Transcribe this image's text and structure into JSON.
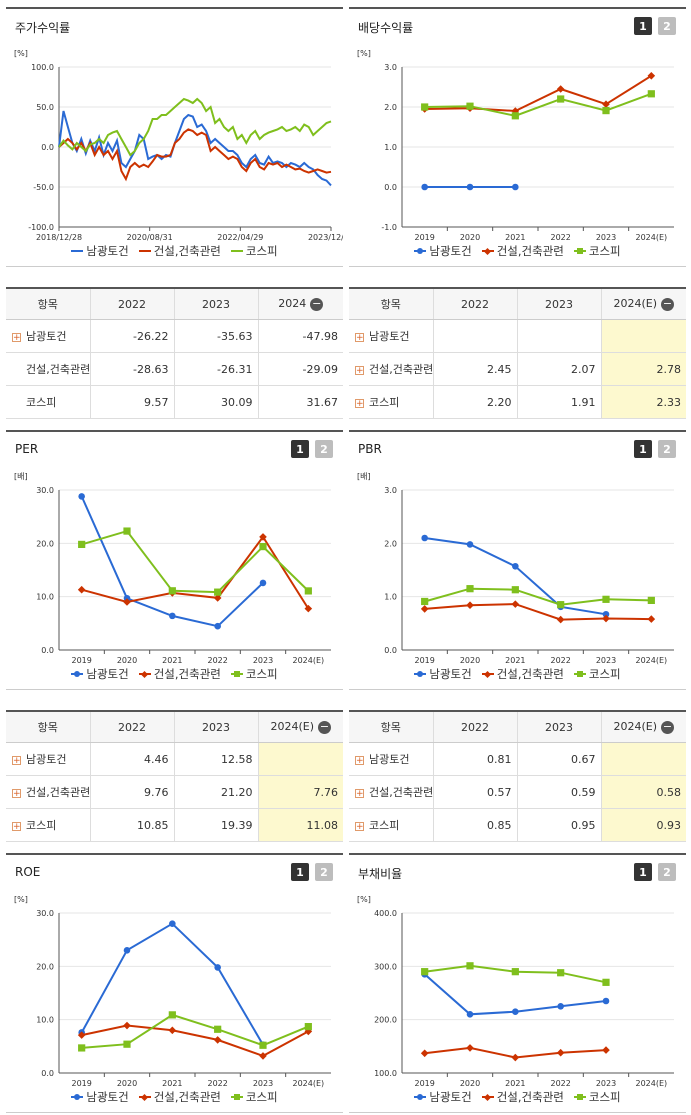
{
  "colors": {
    "s1": "#2a6ad4",
    "s2": "#cc3300",
    "s3": "#7fbf1d",
    "highlight": "#fdf9cf"
  },
  "tab_labels": [
    "1",
    "2"
  ],
  "chart_data": [
    {
      "id": "stock_return",
      "type": "line",
      "title": "주가수익률",
      "unit": "[%]",
      "x_ticks": [
        "2018/12/28",
        "2020/08/31",
        "2022/04/29",
        "2023/12/28"
      ],
      "y_ticks": [
        "100.0",
        "50.0",
        "0.0",
        "-50.0",
        "-100.0"
      ],
      "ylim": [
        -100,
        100
      ],
      "series": [
        {
          "name": "남광토건",
          "values": [
            0,
            45,
            25,
            5,
            -5,
            10,
            -8,
            8,
            -5,
            12,
            -10,
            5,
            -5,
            8,
            -20,
            -25,
            -15,
            -5,
            15,
            10,
            -15,
            -12,
            -10,
            -15,
            -10,
            -12,
            5,
            20,
            35,
            40,
            38,
            25,
            28,
            20,
            5,
            10,
            5,
            0,
            -5,
            -5,
            -10,
            -20,
            -25,
            -15,
            -10,
            -20,
            -22,
            -12,
            -20,
            -18,
            -20,
            -25,
            -20,
            -22,
            -25,
            -20,
            -25,
            -28,
            -35,
            -40,
            -42,
            -48
          ]
        },
        {
          "name": "건설,건축관련",
          "values": [
            0,
            5,
            10,
            5,
            -3,
            5,
            -5,
            5,
            -10,
            0,
            -10,
            -5,
            -15,
            -5,
            -30,
            -40,
            -25,
            -20,
            -25,
            -22,
            -25,
            -18,
            -10,
            -12,
            -12,
            -10,
            5,
            10,
            18,
            22,
            20,
            15,
            18,
            15,
            -5,
            0,
            -5,
            -10,
            -15,
            -12,
            -15,
            -25,
            -30,
            -20,
            -15,
            -25,
            -28,
            -20,
            -22,
            -20,
            -25,
            -22,
            -25,
            -28,
            -27,
            -30,
            -32,
            -30,
            -28,
            -30,
            -32,
            -31
          ]
        },
        {
          "name": "코스피",
          "values": [
            0,
            8,
            2,
            -3,
            5,
            0,
            -5,
            3,
            5,
            10,
            5,
            15,
            18,
            20,
            10,
            0,
            -10,
            -5,
            5,
            10,
            20,
            35,
            35,
            40,
            40,
            45,
            50,
            55,
            60,
            58,
            55,
            60,
            55,
            45,
            50,
            30,
            35,
            25,
            20,
            25,
            10,
            15,
            5,
            15,
            20,
            10,
            15,
            18,
            20,
            22,
            25,
            20,
            22,
            25,
            20,
            28,
            25,
            15,
            20,
            25,
            30,
            32
          ]
        }
      ]
    },
    {
      "id": "dividend",
      "type": "line",
      "title": "배당수익률",
      "unit": "[%]",
      "categories": [
        "2019",
        "2020",
        "2021",
        "2022",
        "2023",
        "2024(E)"
      ],
      "y_ticks": [
        "3.0",
        "2.0",
        "1.0",
        "0.0",
        "-1.0"
      ],
      "ylim": [
        -1,
        3
      ],
      "series": [
        {
          "name": "남광토건",
          "values": [
            0.0,
            0.0,
            0.0,
            null,
            null,
            null
          ]
        },
        {
          "name": "건설,건축관련",
          "values": [
            1.95,
            1.97,
            1.9,
            2.45,
            2.07,
            2.78
          ]
        },
        {
          "name": "코스피",
          "values": [
            2.0,
            2.02,
            1.78,
            2.2,
            1.91,
            2.33
          ]
        }
      ]
    },
    {
      "id": "per",
      "type": "line",
      "title": "PER",
      "unit": "[배]",
      "categories": [
        "2019",
        "2020",
        "2021",
        "2022",
        "2023",
        "2024(E)"
      ],
      "y_ticks": [
        "30.0",
        "20.0",
        "10.0",
        "0.0"
      ],
      "ylim": [
        0,
        30
      ],
      "series": [
        {
          "name": "남광토건",
          "values": [
            28.8,
            9.7,
            6.4,
            4.46,
            12.58,
            null
          ]
        },
        {
          "name": "건설,건축관련",
          "values": [
            11.3,
            9.0,
            10.7,
            9.76,
            21.2,
            7.76
          ]
        },
        {
          "name": "코스피",
          "values": [
            19.8,
            22.3,
            11.1,
            10.85,
            19.39,
            11.08
          ]
        }
      ]
    },
    {
      "id": "pbr",
      "type": "line",
      "title": "PBR",
      "unit": "[배]",
      "categories": [
        "2019",
        "2020",
        "2021",
        "2022",
        "2023",
        "2024(E)"
      ],
      "y_ticks": [
        "3.0",
        "2.0",
        "1.0",
        "0.0"
      ],
      "ylim": [
        0,
        3
      ],
      "series": [
        {
          "name": "남광토건",
          "values": [
            2.1,
            1.98,
            1.57,
            0.81,
            0.67,
            null
          ]
        },
        {
          "name": "건설,건축관련",
          "values": [
            0.77,
            0.84,
            0.86,
            0.57,
            0.59,
            0.58
          ]
        },
        {
          "name": "코스피",
          "values": [
            0.91,
            1.15,
            1.13,
            0.85,
            0.95,
            0.93
          ]
        }
      ]
    },
    {
      "id": "roe",
      "type": "line",
      "title": "ROE",
      "unit": "[%]",
      "categories": [
        "2019",
        "2020",
        "2021",
        "2022",
        "2023",
        "2024(E)"
      ],
      "y_ticks": [
        "30.0",
        "20.0",
        "10.0",
        "0.0"
      ],
      "ylim": [
        0,
        30
      ],
      "series": [
        {
          "name": "남광토건",
          "values": [
            7.6,
            23.0,
            28.0,
            19.8,
            5.3,
            null
          ]
        },
        {
          "name": "건설,건축관련",
          "values": [
            7.1,
            8.9,
            8.0,
            6.2,
            3.2,
            7.8
          ]
        },
        {
          "name": "코스피",
          "values": [
            4.7,
            5.4,
            10.9,
            8.2,
            5.2,
            8.7
          ]
        }
      ]
    },
    {
      "id": "debt_ratio",
      "type": "line",
      "title": "부채비율",
      "unit": "[%]",
      "categories": [
        "2019",
        "2020",
        "2021",
        "2022",
        "2023",
        "2024(E)"
      ],
      "y_ticks": [
        "400.0",
        "300.0",
        "200.0",
        "100.0"
      ],
      "ylim": [
        100,
        400
      ],
      "series": [
        {
          "name": "남광토건",
          "values": [
            285,
            210,
            215,
            225,
            235,
            null
          ]
        },
        {
          "name": "건설,건축관련",
          "values": [
            137,
            147,
            129,
            138,
            143,
            null
          ]
        },
        {
          "name": "코스피",
          "values": [
            290,
            301,
            290,
            288,
            270,
            null
          ]
        }
      ]
    }
  ],
  "tables": {
    "header_label": "항목",
    "stock_return": {
      "columns": [
        "2022",
        "2023",
        "2024"
      ],
      "rows": [
        {
          "label": "남광토건",
          "plus": true,
          "values": [
            "-26.22",
            "-35.63",
            "-47.98"
          ]
        },
        {
          "label": "건설,건축관련",
          "plus": false,
          "values": [
            "-28.63",
            "-26.31",
            "-29.09"
          ]
        },
        {
          "label": "코스피",
          "plus": false,
          "values": [
            "9.57",
            "30.09",
            "31.67"
          ]
        }
      ]
    },
    "dividend": {
      "columns": [
        "2022",
        "2023",
        "2024(E)"
      ],
      "rows": [
        {
          "label": "남광토건",
          "plus": true,
          "values": [
            "",
            "",
            ""
          ]
        },
        {
          "label": "건설,건축관련",
          "plus": true,
          "values": [
            "2.45",
            "2.07",
            "2.78"
          ]
        },
        {
          "label": "코스피",
          "plus": true,
          "values": [
            "2.20",
            "1.91",
            "2.33"
          ]
        }
      ]
    },
    "per": {
      "columns": [
        "2022",
        "2023",
        "2024(E)"
      ],
      "rows": [
        {
          "label": "남광토건",
          "plus": true,
          "values": [
            "4.46",
            "12.58",
            ""
          ]
        },
        {
          "label": "건설,건축관련",
          "plus": true,
          "values": [
            "9.76",
            "21.20",
            "7.76"
          ]
        },
        {
          "label": "코스피",
          "plus": true,
          "values": [
            "10.85",
            "19.39",
            "11.08"
          ]
        }
      ]
    },
    "pbr": {
      "columns": [
        "2022",
        "2023",
        "2024(E)"
      ],
      "rows": [
        {
          "label": "남광토건",
          "plus": true,
          "values": [
            "0.81",
            "0.67",
            ""
          ]
        },
        {
          "label": "건설,건축관련",
          "plus": true,
          "values": [
            "0.57",
            "0.59",
            "0.58"
          ]
        },
        {
          "label": "코스피",
          "plus": true,
          "values": [
            "0.85",
            "0.95",
            "0.93"
          ]
        }
      ]
    }
  }
}
